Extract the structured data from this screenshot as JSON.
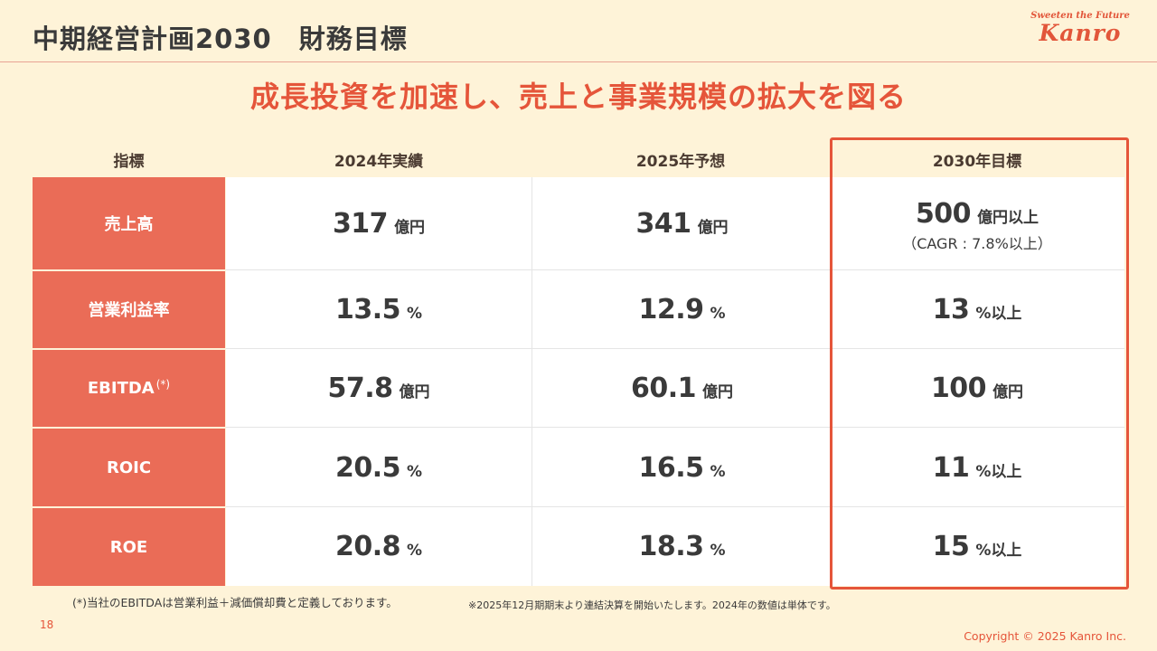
{
  "header": {
    "title": "中期経営計画2030　財務目標",
    "logo_tagline": "Sweeten the Future",
    "logo_name": "Kanro"
  },
  "headline": "成長投資を加速し、売上と事業規模の拡大を図る",
  "table": {
    "headers": [
      "指標",
      "2024年実績",
      "2025年予想",
      "2030年目標"
    ],
    "rows": [
      {
        "label": "売上高",
        "note": "",
        "values": [
          {
            "num": "317",
            "unit": "億円",
            "sub": ""
          },
          {
            "num": "341",
            "unit": "億円",
            "sub": ""
          },
          {
            "num": "500",
            "unit": "億円以上",
            "sub": "（CAGR : 7.8%以上）"
          }
        ]
      },
      {
        "label": "営業利益率",
        "note": "",
        "values": [
          {
            "num": "13.5",
            "unit": "%",
            "sub": ""
          },
          {
            "num": "12.9",
            "unit": "%",
            "sub": ""
          },
          {
            "num": "13",
            "unit": "%以上",
            "sub": ""
          }
        ]
      },
      {
        "label": "EBITDA",
        "note": "(*)",
        "values": [
          {
            "num": "57.8",
            "unit": "億円",
            "sub": ""
          },
          {
            "num": "60.1",
            "unit": "億円",
            "sub": ""
          },
          {
            "num": "100",
            "unit": "億円",
            "sub": ""
          }
        ]
      },
      {
        "label": "ROIC",
        "note": "",
        "values": [
          {
            "num": "20.5",
            "unit": "%",
            "sub": ""
          },
          {
            "num": "16.5",
            "unit": "%",
            "sub": ""
          },
          {
            "num": "11",
            "unit": "%以上",
            "sub": ""
          }
        ]
      },
      {
        "label": "ROE",
        "note": "",
        "values": [
          {
            "num": "20.8",
            "unit": "%",
            "sub": ""
          },
          {
            "num": "18.3",
            "unit": "%",
            "sub": ""
          },
          {
            "num": "15",
            "unit": "%以上",
            "sub": ""
          }
        ]
      }
    ]
  },
  "footnotes": {
    "ebitda": "(*)当社のEBITDAは営業利益＋減価償却費と定義しております。",
    "consolidated": "※2025年12月期期末より連結決算を開始いたします。2024年の数値は単体です。"
  },
  "page_number": "18",
  "copyright": "Copyright © 2025  Kanro Inc.",
  "colors": {
    "accent": "#E5553A",
    "label_fill": "#EA6C57",
    "background": "#FEF3D8"
  }
}
